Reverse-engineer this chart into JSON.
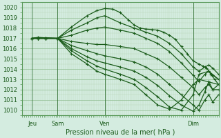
{
  "xlabel": "Pression niveau de la mer( hPa )",
  "bg_color": "#d4ece0",
  "grid_color_major": "#90be90",
  "grid_color_minor": "#b8d8b8",
  "line_color": "#1a5c1a",
  "ylim": [
    1009.5,
    1020.5
  ],
  "yticks": [
    1010,
    1011,
    1012,
    1013,
    1014,
    1015,
    1016,
    1017,
    1018,
    1019,
    1020
  ],
  "xlim": [
    0,
    100
  ],
  "xtick_positions": [
    5,
    18,
    42,
    87
  ],
  "xtick_labels": [
    "Jeu",
    "Sam",
    "Ven",
    "Dim"
  ],
  "vline_positions": [
    5,
    18,
    42,
    87
  ],
  "lines": [
    [
      5,
      1017.0,
      8,
      1017.1,
      12,
      1017.05,
      18,
      1017.0,
      25,
      1018.1,
      33,
      1019.2,
      38,
      1019.7,
      42,
      1019.9,
      46,
      1019.85,
      50,
      1019.5,
      54,
      1018.8,
      57,
      1018.3,
      60,
      1018.0,
      63,
      1017.9,
      66,
      1017.85,
      69,
      1017.8,
      72,
      1017.6,
      75,
      1017.3,
      78,
      1016.9,
      81,
      1016.2,
      84,
      1015.5,
      87,
      1014.8,
      90,
      1014.5,
      92,
      1014.3,
      94,
      1014.1,
      96,
      1013.5,
      98,
      1013.0,
      100,
      1012.5
    ],
    [
      5,
      1017.0,
      8,
      1017.05,
      12,
      1017.05,
      18,
      1017.0,
      25,
      1017.8,
      33,
      1018.5,
      38,
      1019.0,
      42,
      1019.2,
      50,
      1018.5,
      57,
      1018.0,
      63,
      1017.6,
      69,
      1017.2,
      75,
      1016.5,
      81,
      1015.5,
      87,
      1014.2,
      90,
      1013.8,
      93,
      1014.2,
      95,
      1014.4,
      97,
      1014.1,
      100,
      1013.5
    ],
    [
      5,
      1017.0,
      8,
      1017.05,
      12,
      1017.0,
      18,
      1017.0,
      25,
      1017.3,
      33,
      1017.8,
      38,
      1018.0,
      42,
      1018.1,
      50,
      1017.8,
      57,
      1017.5,
      63,
      1017.0,
      69,
      1016.5,
      75,
      1015.7,
      81,
      1014.6,
      87,
      1013.4,
      90,
      1012.8,
      93,
      1013.5,
      95,
      1013.8,
      97,
      1013.4,
      100,
      1013.0
    ],
    [
      5,
      1017.0,
      8,
      1017.0,
      12,
      1017.0,
      18,
      1017.0,
      25,
      1016.7,
      33,
      1016.5,
      38,
      1016.4,
      42,
      1016.4,
      50,
      1016.2,
      57,
      1016.0,
      63,
      1015.5,
      69,
      1015.0,
      75,
      1014.2,
      81,
      1013.2,
      87,
      1012.2,
      90,
      1011.5,
      93,
      1012.2,
      95,
      1012.5,
      97,
      1012.0,
      100,
      1012.5
    ],
    [
      5,
      1017.0,
      8,
      1017.0,
      12,
      1017.0,
      18,
      1017.0,
      25,
      1016.3,
      33,
      1015.8,
      38,
      1015.5,
      42,
      1015.3,
      50,
      1015.0,
      57,
      1014.7,
      63,
      1014.2,
      69,
      1013.5,
      75,
      1012.5,
      81,
      1011.5,
      87,
      1010.5,
      90,
      1010.0,
      93,
      1011.0,
      95,
      1011.5,
      97,
      1010.8,
      100,
      1011.5
    ],
    [
      5,
      1017.0,
      8,
      1017.0,
      12,
      1017.0,
      18,
      1017.0,
      25,
      1016.0,
      33,
      1015.2,
      38,
      1014.8,
      42,
      1014.6,
      50,
      1014.2,
      57,
      1013.8,
      63,
      1013.2,
      69,
      1012.4,
      75,
      1011.4,
      81,
      1010.5,
      87,
      1009.9,
      90,
      1010.5,
      93,
      1011.8,
      95,
      1012.8,
      97,
      1012.0,
      100,
      1012.0
    ],
    [
      5,
      1017.0,
      8,
      1017.0,
      12,
      1017.0,
      18,
      1017.0,
      25,
      1015.8,
      33,
      1014.8,
      38,
      1014.3,
      42,
      1014.0,
      50,
      1013.5,
      57,
      1013.0,
      63,
      1012.2,
      69,
      1011.3,
      75,
      1010.3,
      81,
      1010.0,
      87,
      1011.5,
      90,
      1013.5,
      95,
      1013.8,
      100,
      1013.0
    ],
    [
      5,
      1017.0,
      8,
      1017.0,
      12,
      1017.0,
      18,
      1017.0,
      25,
      1015.5,
      33,
      1014.5,
      38,
      1013.8,
      42,
      1013.5,
      50,
      1013.0,
      57,
      1012.5,
      63,
      1011.5,
      69,
      1010.5,
      75,
      1010.1,
      81,
      1011.0,
      87,
      1012.5,
      90,
      1013.0,
      100,
      1012.5
    ]
  ]
}
